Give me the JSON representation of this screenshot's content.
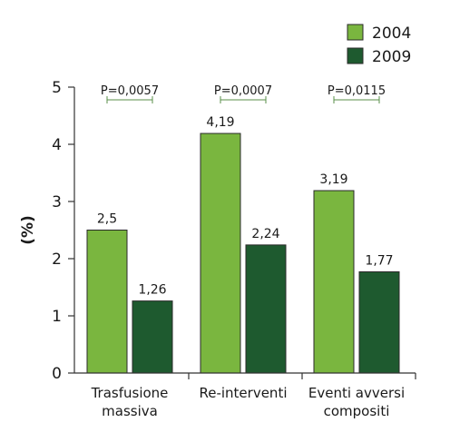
{
  "chart_data": {
    "type": "bar",
    "ylabel": "(%)",
    "ylim": [
      0,
      5
    ],
    "yticks": [
      "0",
      "1",
      "2",
      "3",
      "4",
      "5"
    ],
    "categories": [
      [
        "Trasfusione",
        "massiva"
      ],
      [
        "Re-interventi"
      ],
      [
        "Eventi avversi",
        "compositi"
      ]
    ],
    "series": [
      {
        "name": "2004",
        "color": "#7ab63f",
        "values": [
          2.5,
          4.19,
          3.19
        ],
        "labels": [
          "2,5",
          "4,19",
          "3,19"
        ]
      },
      {
        "name": "2009",
        "color": "#1e5a2f",
        "values": [
          1.26,
          2.24,
          1.77
        ],
        "labels": [
          "1,26",
          "2,24",
          "1,77"
        ]
      }
    ],
    "pvalues": [
      "P=0,0057",
      "P=0,0007",
      "P=0,0115"
    ],
    "legend_position": "top-right",
    "grid": false
  }
}
